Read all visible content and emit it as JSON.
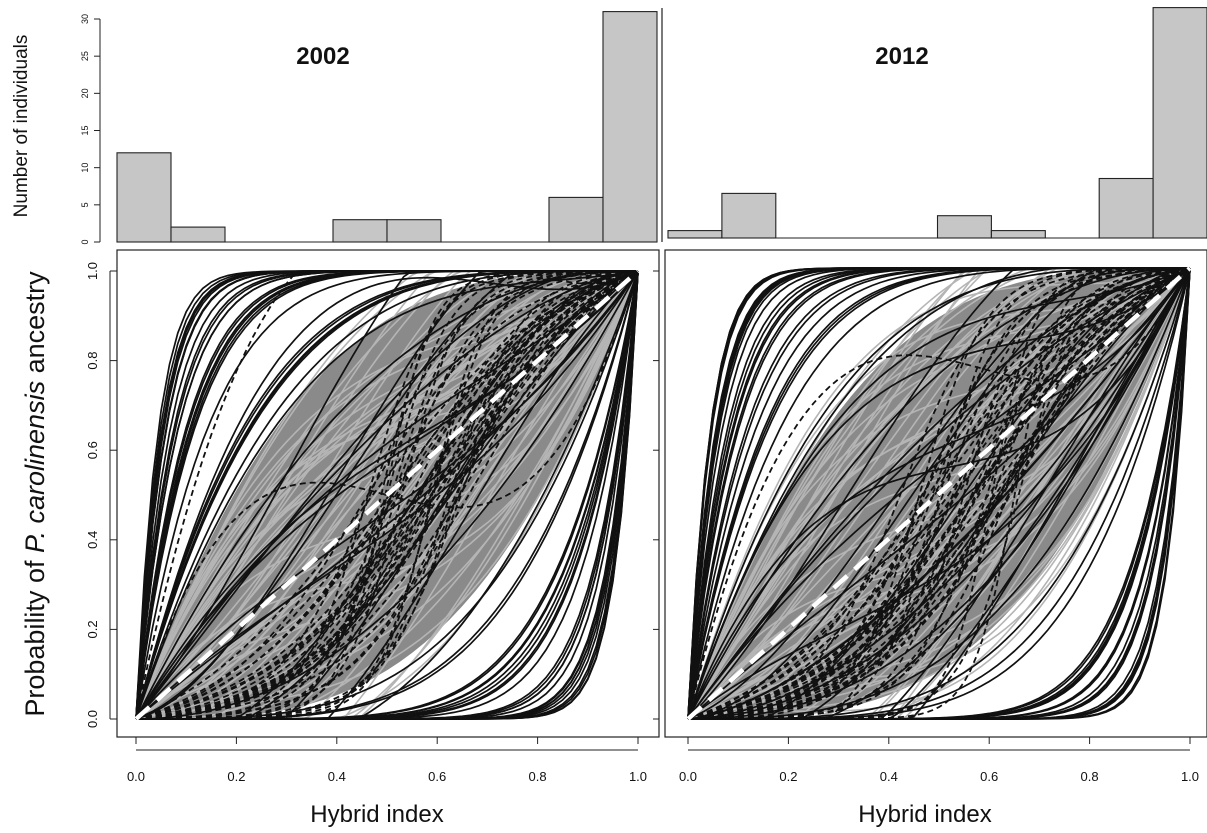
{
  "chart_data": [
    {
      "type": "bar",
      "title": "2002",
      "ylabel": "Number of individuals",
      "bins": [
        [
          0.0,
          0.1
        ],
        [
          0.1,
          0.2
        ],
        [
          0.2,
          0.3
        ],
        [
          0.3,
          0.4
        ],
        [
          0.4,
          0.5
        ],
        [
          0.5,
          0.6
        ],
        [
          0.6,
          0.7
        ],
        [
          0.7,
          0.8
        ],
        [
          0.8,
          0.9
        ],
        [
          0.9,
          1.0
        ]
      ],
      "values": [
        12,
        2,
        0,
        0,
        3,
        3,
        0,
        0,
        6,
        31
      ],
      "ylim": [
        0,
        30
      ],
      "yticks": [
        "0",
        "5",
        "10",
        "15",
        "20",
        "25",
        "30"
      ]
    },
    {
      "type": "bar",
      "title": "2012",
      "bins": [
        [
          0.0,
          0.1
        ],
        [
          0.1,
          0.2
        ],
        [
          0.2,
          0.3
        ],
        [
          0.3,
          0.4
        ],
        [
          0.4,
          0.5
        ],
        [
          0.5,
          0.6
        ],
        [
          0.6,
          0.7
        ],
        [
          0.7,
          0.8
        ],
        [
          0.8,
          0.9
        ],
        [
          0.9,
          1.0
        ]
      ],
      "values": [
        1,
        6,
        0,
        0,
        0,
        3,
        1,
        0,
        8,
        31
      ],
      "ylim": [
        0,
        30
      ]
    },
    {
      "type": "line",
      "xlabel": "Hybrid index",
      "ylabel_parts": [
        "Probability of ",
        "P. carolinensis",
        " ancestry"
      ],
      "xlim": [
        0,
        1
      ],
      "ylim": [
        0,
        1
      ],
      "xticks": [
        "0.0",
        "0.2",
        "0.4",
        "0.6",
        "0.8",
        "1.0"
      ],
      "yticks": [
        "0.0",
        "0.2",
        "0.4",
        "0.6",
        "0.8",
        "1.0"
      ],
      "series_styles": {
        "gray_fill": "#8a8a8a",
        "light_lines": "#b5b5b5",
        "dark_lines": "#111111",
        "neutral_line": "#ffffff"
      }
    },
    {
      "type": "line",
      "xlabel": "Hybrid index",
      "xlim": [
        0,
        1
      ],
      "ylim": [
        0,
        1
      ],
      "xticks": [
        "0.0",
        "0.2",
        "0.4",
        "0.6",
        "0.8",
        "1.0"
      ],
      "series_styles": {
        "gray_fill": "#8a8a8a",
        "light_lines": "#b5b5b5",
        "dark_lines": "#111111",
        "neutral_line": "#ffffff"
      }
    }
  ]
}
